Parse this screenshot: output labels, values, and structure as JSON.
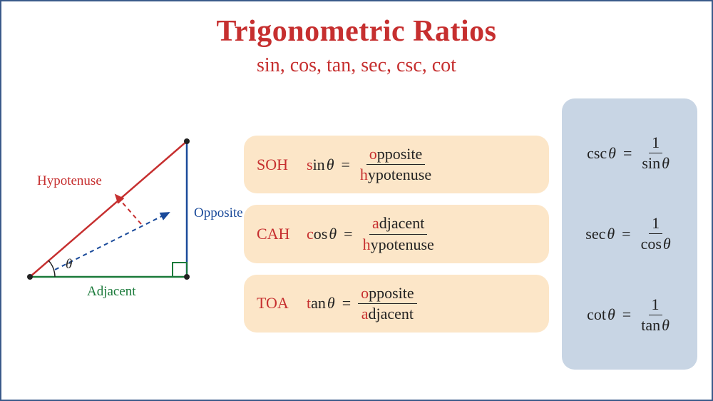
{
  "colors": {
    "border": "#3a5a8a",
    "title": "#c62f2f",
    "subtitle": "#c62f2f",
    "hypotenuse": "#c62f2f",
    "opposite": "#1a4a9a",
    "adjacent": "#1a7a3a",
    "mnemonic": "#c62f2f",
    "highlight_letter": "#c62f2f",
    "text": "#222222",
    "box_bg": "#fce6c8",
    "reciprocal_bg": "#c8d5e4"
  },
  "title": "Trigonometric Ratios",
  "subtitle": "sin, cos, tan, sec, csc, cot",
  "triangle": {
    "hypotenuse_label": "Hypotenuse",
    "opposite_label": "Opposite",
    "adjacent_label": "Adjacent",
    "angle_label": "θ",
    "vertices": {
      "A": [
        40,
        250
      ],
      "B": [
        260,
        250
      ],
      "C": [
        260,
        60
      ]
    }
  },
  "primary": [
    {
      "mnemonic": "SOH",
      "func_first": "s",
      "func_rest": "in",
      "num_first": "o",
      "num_rest": "pposite",
      "den_first": "h",
      "den_rest": "ypotenuse"
    },
    {
      "mnemonic": "CAH",
      "func_first": "c",
      "func_rest": "os",
      "num_first": "a",
      "num_rest": "djacent",
      "den_first": "h",
      "den_rest": "ypotenuse"
    },
    {
      "mnemonic": "TOA",
      "func_first": "t",
      "func_rest": "an",
      "num_first": "o",
      "num_rest": "pposite",
      "den_first": "a",
      "den_rest": "djacent"
    }
  ],
  "reciprocal": [
    {
      "func": "csc",
      "denom_func": "sin"
    },
    {
      "func": "sec",
      "denom_func": "cos"
    },
    {
      "func": "cot",
      "denom_func": "tan"
    }
  ],
  "theta": "θ",
  "one": "1"
}
